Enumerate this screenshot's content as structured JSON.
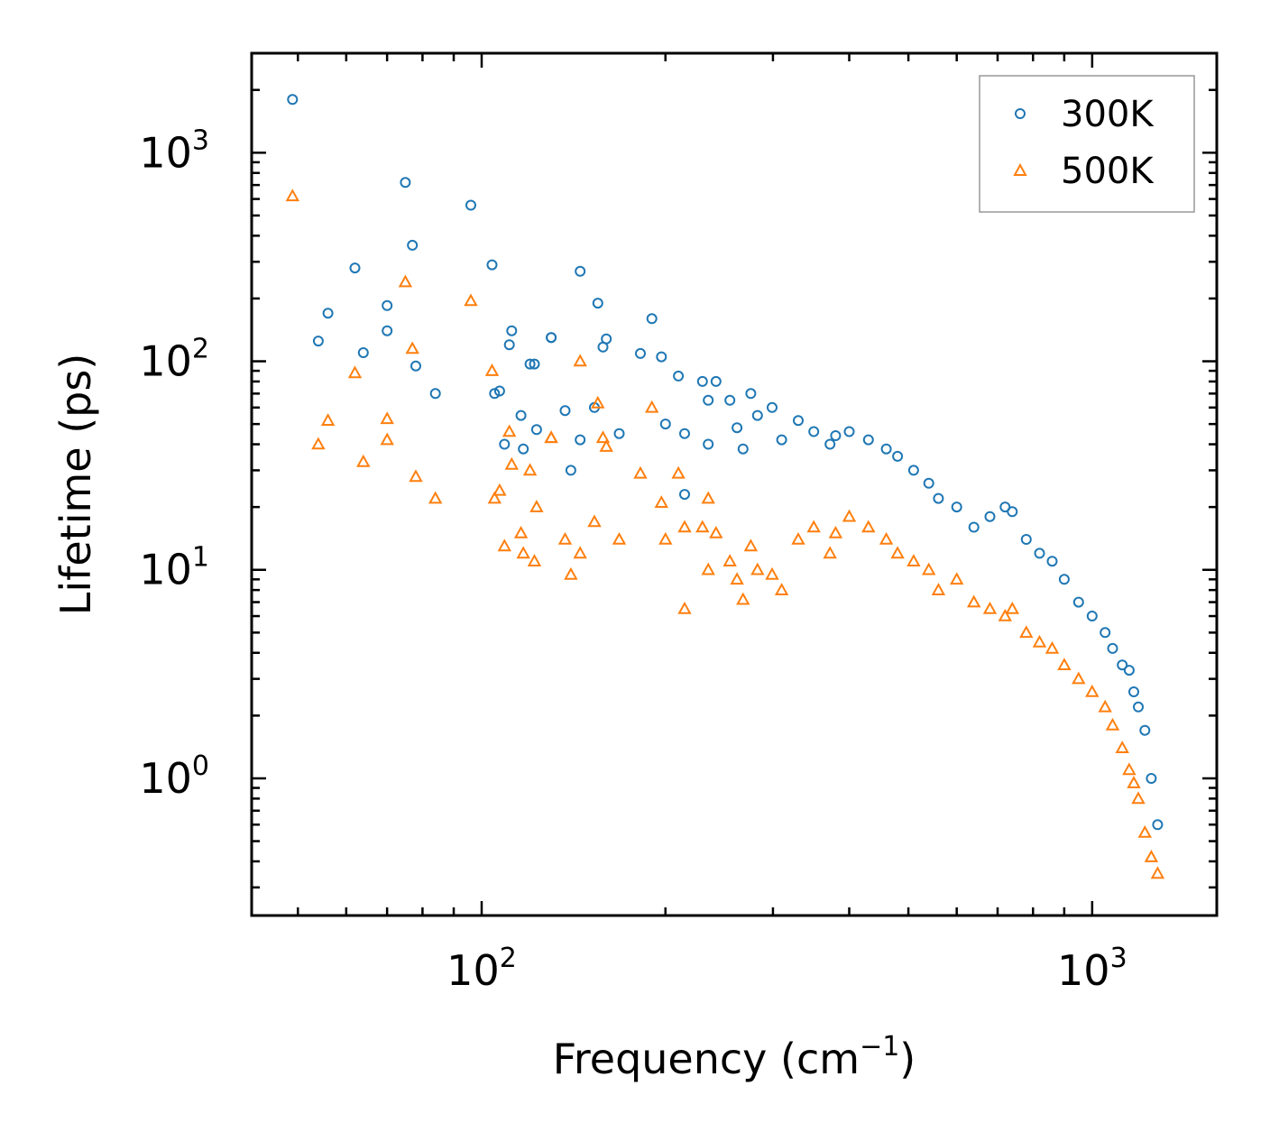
{
  "chart_data": {
    "type": "scatter",
    "title": "",
    "xlabel": "Frequency (cm",
    "xlabel_sup": "−1",
    "xlabel_end": ")",
    "ylabel": "Lifetime (ps)",
    "xscale": "log",
    "yscale": "log",
    "xlim": [
      42,
      1600
    ],
    "ylim": [
      0.22,
      3000
    ],
    "x_ticks": [
      {
        "value": 100,
        "base": "10",
        "exp": "2"
      },
      {
        "value": 1000,
        "base": "10",
        "exp": "3"
      }
    ],
    "y_ticks": [
      {
        "value": 1,
        "base": "10",
        "exp": "0"
      },
      {
        "value": 10,
        "base": "10",
        "exp": "1"
      },
      {
        "value": 100,
        "base": "10",
        "exp": "2"
      },
      {
        "value": 1000,
        "base": "10",
        "exp": "3"
      }
    ],
    "legend_position": "top-right",
    "series": [
      {
        "name": "300K",
        "marker": "circle",
        "color": "#1f77b4",
        "x": [
          49,
          54,
          56,
          62,
          64,
          70,
          70,
          75,
          77,
          78,
          84,
          96,
          104,
          105,
          107,
          109,
          111,
          112,
          116,
          117,
          120,
          122,
          123,
          130,
          130,
          137,
          140,
          145,
          145,
          153,
          155,
          158,
          160,
          168,
          182,
          190,
          197,
          200,
          210,
          215,
          215,
          230,
          235,
          235,
          242,
          255,
          262,
          268,
          276,
          283,
          299,
          310,
          330,
          350,
          372,
          380,
          400,
          430,
          460,
          480,
          510,
          540,
          560,
          600,
          640,
          680,
          720,
          740,
          780,
          820,
          860,
          900,
          950,
          1000,
          1050,
          1080,
          1120,
          1150,
          1170,
          1190,
          1220,
          1250,
          1280
        ],
        "y": [
          1800,
          125,
          170,
          280,
          110,
          140,
          185,
          720,
          360,
          95,
          70,
          560,
          290,
          70,
          72,
          40,
          120,
          140,
          55,
          38,
          97,
          97,
          47,
          130,
          130,
          58,
          30,
          270,
          42,
          60,
          190,
          117,
          128,
          45,
          109,
          160,
          105,
          50,
          85,
          23,
          45,
          80,
          65,
          40,
          80,
          65,
          48,
          38,
          70,
          55,
          60,
          42,
          52,
          46,
          40,
          44,
          46,
          42,
          38,
          35,
          30,
          26,
          22,
          20,
          16,
          18,
          20,
          19,
          14,
          12,
          11,
          9,
          7,
          6,
          5,
          4.2,
          3.5,
          3.3,
          2.6,
          2.2,
          1.7,
          1.0,
          0.6
        ]
      },
      {
        "name": "500K",
        "marker": "triangle",
        "color": "#ff7f0e",
        "x": [
          49,
          54,
          56,
          62,
          64,
          70,
          70,
          75,
          77,
          78,
          84,
          96,
          104,
          105,
          107,
          109,
          111,
          112,
          116,
          117,
          120,
          122,
          123,
          130,
          130,
          137,
          140,
          145,
          145,
          153,
          155,
          158,
          160,
          168,
          182,
          190,
          197,
          200,
          210,
          215,
          215,
          230,
          235,
          235,
          242,
          255,
          262,
          268,
          276,
          283,
          299,
          310,
          330,
          350,
          372,
          380,
          400,
          430,
          460,
          480,
          510,
          540,
          560,
          600,
          640,
          680,
          720,
          740,
          780,
          820,
          860,
          900,
          950,
          1000,
          1050,
          1080,
          1120,
          1150,
          1170,
          1190,
          1220,
          1250,
          1280
        ],
        "y": [
          620,
          40,
          52,
          88,
          33,
          42,
          53,
          240,
          115,
          28,
          22,
          195,
          90,
          22,
          24,
          13,
          46,
          32,
          15,
          12,
          30,
          11,
          20,
          43,
          43,
          14,
          9.5,
          100,
          12,
          17,
          63,
          43,
          39,
          14,
          29,
          60,
          21,
          14,
          29,
          6.5,
          16,
          16,
          22,
          10,
          15,
          11,
          9,
          7.2,
          13,
          10,
          9.5,
          8,
          14,
          16,
          12,
          15,
          18,
          16,
          14,
          12,
          11,
          10,
          8,
          9,
          7,
          6.5,
          6,
          6.5,
          5,
          4.5,
          4.2,
          3.5,
          3.0,
          2.6,
          2.2,
          1.8,
          1.4,
          1.1,
          0.95,
          0.8,
          0.55,
          0.42,
          0.35
        ]
      }
    ]
  }
}
